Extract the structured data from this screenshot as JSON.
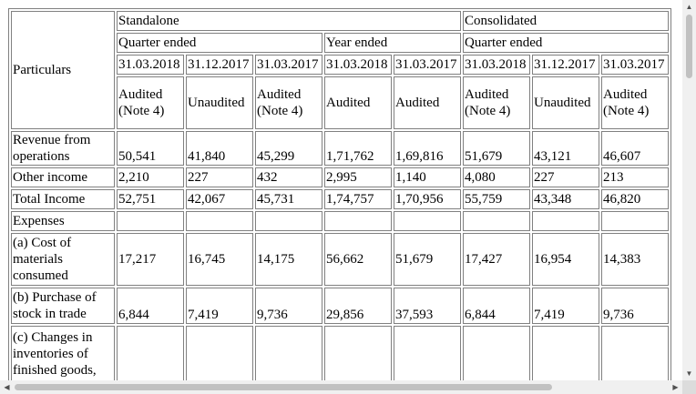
{
  "table": {
    "particulars_label": "Particulars",
    "group_standalone": "Standalone",
    "group_consolidated": "Consolidated",
    "sub_quarter_ended_standalone": "Quarter ended",
    "sub_year_ended_standalone": "Year ended",
    "sub_quarter_ended_consolidated": "Quarter ended",
    "dates": [
      "31.03.2018",
      "31.12.2017",
      "31.03.2017",
      "31.03.2018",
      "31.03.2017",
      "31.03.2018",
      "31.12.2017",
      "31.03.2017"
    ],
    "status": [
      "Audited (Note 4)",
      "Unaudited",
      "Audited (Note 4)",
      "Audited",
      "Audited",
      "Audited (Note 4)",
      "Unaudited",
      "Audited (Note 4)"
    ],
    "rows": [
      {
        "label": "Revenue from operations",
        "values": [
          "50,541",
          "41,840",
          "45,299",
          "1,71,762",
          "1,69,816",
          "51,679",
          "43,121",
          "46,607"
        ]
      },
      {
        "label": "Other income",
        "values": [
          "2,210",
          "227",
          "432",
          "2,995",
          "1,140",
          "4,080",
          "227",
          "213"
        ]
      },
      {
        "label": "Total Income",
        "values": [
          "52,751",
          "42,067",
          "45,731",
          "1,74,757",
          "1,70,956",
          "55,759",
          "43,348",
          "46,820"
        ]
      },
      {
        "label": "Expenses",
        "values": [
          "",
          "",
          "",
          "",
          "",
          "",
          "",
          ""
        ]
      },
      {
        "label": "(a) Cost of materials consumed",
        "values": [
          "17,217",
          "16,745",
          "14,175",
          "56,662",
          "51,679",
          "17,427",
          "16,954",
          "14,383"
        ]
      },
      {
        "label": "(b) Purchase of stock in trade",
        "values": [
          "6,844",
          "7,419",
          "9,736",
          "29,856",
          "37,593",
          "6,844",
          "7,419",
          "9,736"
        ]
      },
      {
        "label": "(c) Changes in inventories of finished goods,",
        "values": [
          "",
          "",
          "",
          "",
          "",
          "",
          "",
          ""
        ]
      }
    ]
  },
  "scrollbars": {
    "up_arrow": "▲",
    "down_arrow": "▼",
    "left_arrow": "◀",
    "right_arrow": "▶"
  }
}
